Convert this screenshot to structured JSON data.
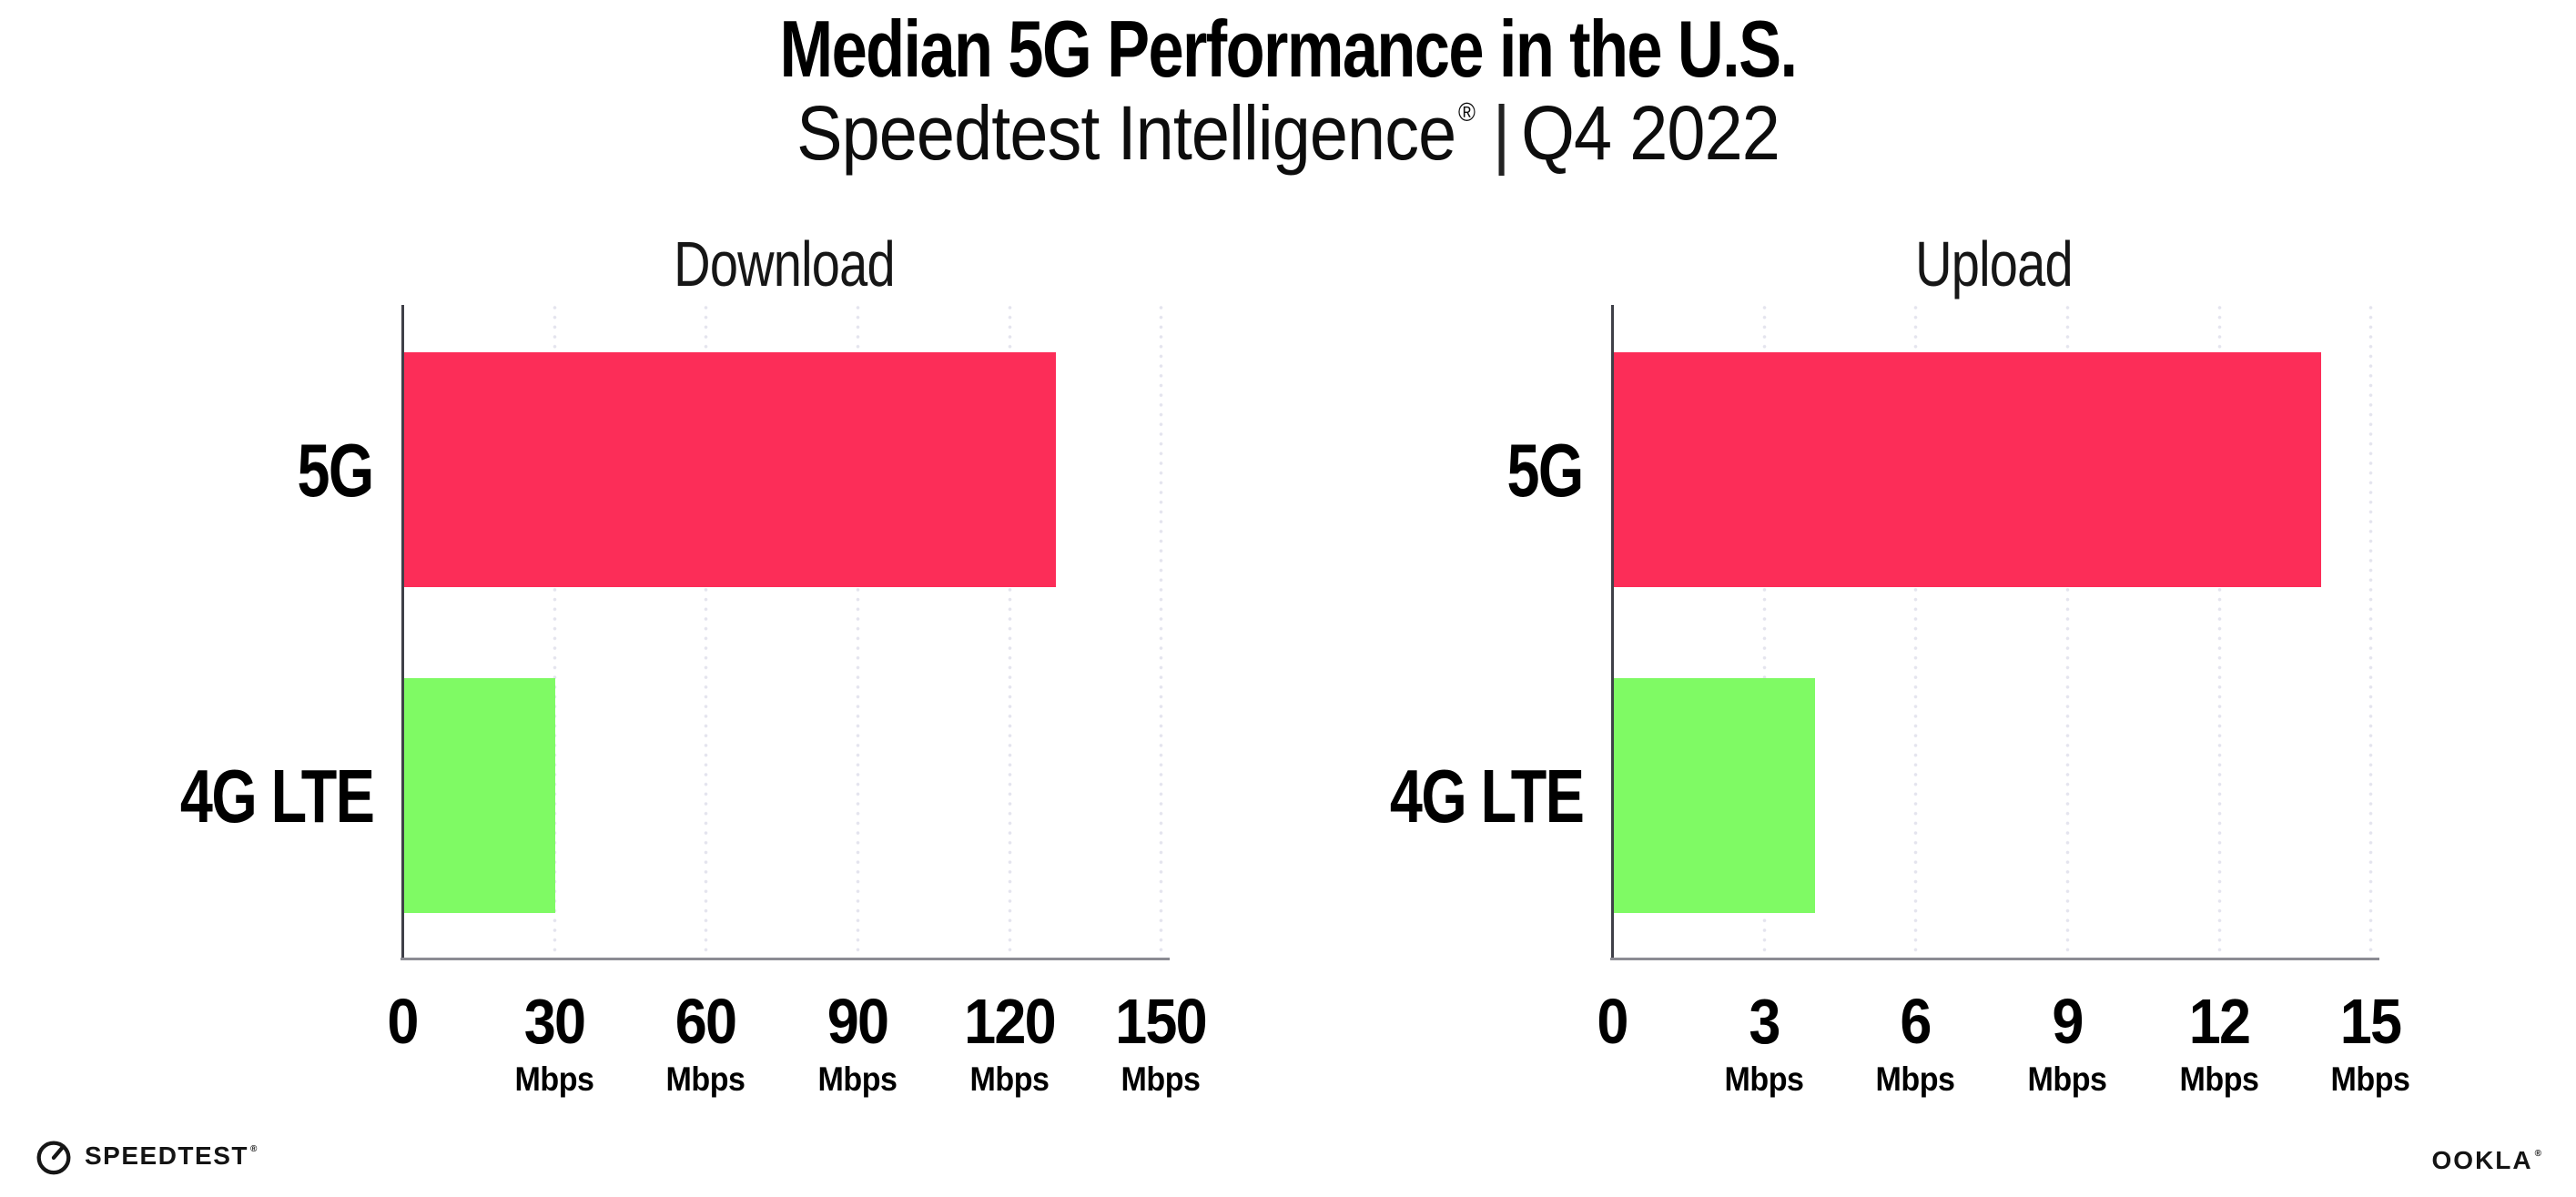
{
  "header": {
    "title": "Median 5G Performance in the U.S.",
    "subtitle_brand": "Speedtest Intelligence",
    "subtitle_reg": "®",
    "subtitle_separator": "|",
    "subtitle_period": "Q4 2022"
  },
  "chart_data": [
    {
      "type": "bar",
      "orientation": "horizontal",
      "title": "Download",
      "categories": [
        "5G",
        "4G LTE"
      ],
      "values": [
        129,
        30
      ],
      "unit": "Mbps",
      "xlim": [
        0,
        151
      ],
      "xticks": [
        0,
        30,
        60,
        90,
        120,
        150
      ],
      "tick_unit": "Mbps",
      "bar_colors": [
        "#FC2D58",
        "#7FFA64"
      ],
      "gridlines": "dotted-vertical",
      "legend": "none"
    },
    {
      "type": "bar",
      "orientation": "horizontal",
      "title": "Upload",
      "categories": [
        "5G",
        "4G LTE"
      ],
      "values": [
        14,
        4
      ],
      "unit": "Mbps",
      "xlim": [
        0,
        15.1
      ],
      "xticks": [
        0,
        3,
        6,
        9,
        12,
        15
      ],
      "tick_unit": "Mbps",
      "bar_colors": [
        "#FC2D58",
        "#7FFA64"
      ],
      "gridlines": "dotted-vertical",
      "legend": "none"
    }
  ],
  "colors": {
    "bar_5g": "#FC2D58",
    "bar_4g_lte": "#7FFA64",
    "gridline_dots": "#E4E4EE",
    "y_axis_spine": "#3F4048",
    "x_axis_baseline": "#8B8B93",
    "text": "#000000",
    "background": "#FFFFFF"
  },
  "footer": {
    "speedtest_label": "SPEEDTEST",
    "speedtest_reg": "®",
    "ookla_label": "OOKLA",
    "ookla_reg": "®"
  }
}
